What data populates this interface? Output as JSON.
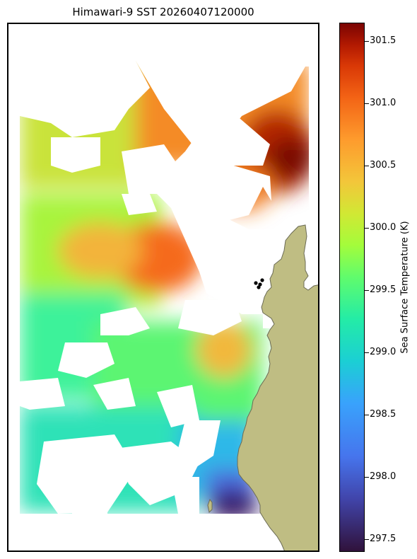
{
  "title": "Himawari-9 SST 20260407120000",
  "colorbar": {
    "label": "Sea Surface Temperature (K)",
    "min": 297.4,
    "max": 301.65,
    "ticks": [
      "297.5",
      "298.0",
      "298.5",
      "299.0",
      "299.5",
      "300.0",
      "300.5",
      "301.0",
      "301.5"
    ],
    "colormap": "turbo"
  },
  "map": {
    "land_color": "#bfbd83",
    "coast_color": "#6b6b55",
    "missing_color": "#ffffff",
    "point_marker_color": "#000000"
  }
}
